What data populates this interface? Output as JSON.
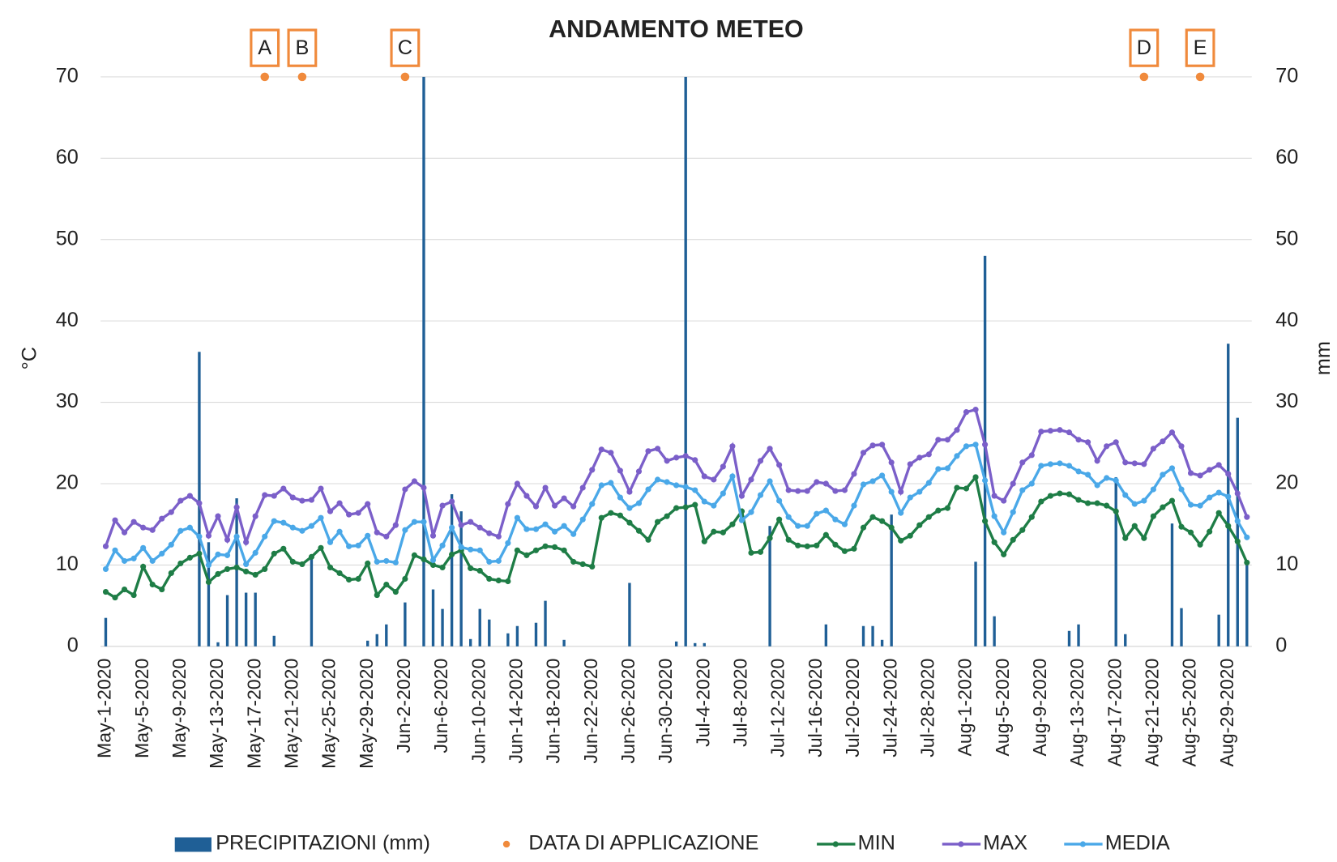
{
  "chart_data": {
    "type": "line",
    "title": "ANDAMENTO METEO",
    "y_label": "°C",
    "y2_label": "mm",
    "ylim": [
      0,
      70
    ],
    "yticks": [
      0,
      10,
      20,
      30,
      40,
      50,
      60,
      70
    ],
    "y2lim": [
      0,
      70
    ],
    "y2ticks": [
      0,
      10,
      20,
      30,
      40,
      50,
      60,
      70
    ],
    "grid": true,
    "legend": "bottom",
    "categories": [
      "May-1-2020",
      null,
      null,
      null,
      "May-5-2020",
      null,
      null,
      null,
      "May-9-2020",
      null,
      null,
      null,
      "May-13-2020",
      null,
      null,
      null,
      "May-17-2020",
      null,
      null,
      null,
      "May-21-2020",
      null,
      null,
      null,
      "May-25-2020",
      null,
      null,
      null,
      "May-29-2020",
      null,
      null,
      null,
      "Jun-2-2020",
      null,
      null,
      null,
      "Jun-6-2020",
      null,
      null,
      null,
      "Jun-10-2020",
      null,
      null,
      null,
      "Jun-14-2020",
      null,
      null,
      null,
      "Jun-18-2020",
      null,
      null,
      null,
      "Jun-22-2020",
      null,
      null,
      null,
      "Jun-26-2020",
      null,
      null,
      null,
      "Jun-30-2020",
      null,
      null,
      null,
      "Jul-4-2020",
      null,
      null,
      null,
      "Jul-8-2020",
      null,
      null,
      null,
      "Jul-12-2020",
      null,
      null,
      null,
      "Jul-16-2020",
      null,
      null,
      null,
      "Jul-20-2020",
      null,
      null,
      null,
      "Jul-24-2020",
      null,
      null,
      null,
      "Jul-28-2020",
      null,
      null,
      null,
      "Aug-1-2020",
      null,
      null,
      null,
      "Aug-5-2020",
      null,
      null,
      null,
      "Aug-9-2020",
      null,
      null,
      null,
      "Aug-13-2020",
      null,
      null,
      null,
      "Aug-17-2020",
      null,
      null,
      null,
      "Aug-21-2020",
      null,
      null,
      null,
      "Aug-25-2020",
      null,
      null,
      null,
      "Aug-29-2020",
      null,
      null
    ],
    "series": [
      {
        "name": "PRECIPITAZIONI (mm)",
        "type": "bar",
        "axis": "y2",
        "color": "#1f5f96",
        "values": [
          3.5,
          0,
          0,
          0,
          0,
          0,
          0,
          0,
          0,
          0,
          36.2,
          12.8,
          0.5,
          6.3,
          18.2,
          6.6,
          6.6,
          0,
          1.3,
          0,
          0,
          0,
          11,
          0,
          0,
          0,
          0,
          0,
          0.7,
          1.5,
          2.7,
          0,
          5.4,
          0,
          70,
          7,
          4.6,
          18.7,
          16.6,
          0.9,
          4.6,
          3.3,
          0,
          1.6,
          2.5,
          0,
          2.9,
          5.6,
          0,
          0.8,
          0,
          0,
          0,
          0,
          0,
          0,
          7.8,
          0,
          0,
          0,
          0,
          0.6,
          70,
          0.4,
          0.4,
          0,
          0,
          0,
          0,
          0,
          0,
          14.8,
          0,
          0,
          0,
          0,
          0,
          2.7,
          0,
          0,
          0,
          2.5,
          2.5,
          0.8,
          16.2,
          0,
          0,
          0,
          0,
          0,
          0,
          0,
          0,
          10.4,
          48,
          3.7,
          0,
          0,
          0,
          0,
          0,
          0,
          0,
          1.9,
          2.7,
          0,
          0,
          0,
          20.8,
          1.5,
          0,
          0,
          0,
          0,
          15.1,
          4.7,
          0,
          0,
          0,
          3.9,
          37.2,
          28.1,
          10.6
        ]
      },
      {
        "name": "DATA DI APPLICAZIONE",
        "type": "scatter",
        "color": "#f08a3c",
        "annotations": [
          "A",
          "B",
          "C",
          "D",
          "E"
        ],
        "values": [
          null,
          null,
          null,
          null,
          null,
          null,
          null,
          null,
          null,
          null,
          null,
          null,
          null,
          null,
          null,
          null,
          null,
          70,
          null,
          null,
          null,
          70,
          null,
          null,
          null,
          null,
          null,
          null,
          null,
          null,
          null,
          null,
          70,
          null,
          null,
          null,
          null,
          null,
          null,
          null,
          null,
          null,
          null,
          null,
          null,
          null,
          null,
          null,
          null,
          null,
          null,
          null,
          null,
          null,
          null,
          null,
          null,
          null,
          null,
          null,
          null,
          null,
          null,
          null,
          null,
          null,
          null,
          null,
          null,
          null,
          null,
          null,
          null,
          null,
          null,
          null,
          null,
          null,
          null,
          null,
          null,
          null,
          null,
          null,
          null,
          null,
          null,
          null,
          null,
          null,
          null,
          null,
          null,
          null,
          null,
          null,
          null,
          null,
          null,
          null,
          null,
          null,
          null,
          null,
          null,
          null,
          null,
          null,
          null,
          null,
          null,
          70,
          null,
          null,
          null,
          null,
          null,
          70,
          null,
          null,
          null,
          null,
          null
        ]
      },
      {
        "name": "MIN",
        "type": "line",
        "color": "#1e7d46",
        "values": [
          6.7,
          6.0,
          7.0,
          6.3,
          9.8,
          7.6,
          7.0,
          9.0,
          10.2,
          10.9,
          11.4,
          7.9,
          8.9,
          9.5,
          9.7,
          9.2,
          8.8,
          9.5,
          11.4,
          12.0,
          10.4,
          10.1,
          11.0,
          12.1,
          9.7,
          9.0,
          8.2,
          8.3,
          10.2,
          6.3,
          7.6,
          6.7,
          8.3,
          11.2,
          10.7,
          10.0,
          9.7,
          11.3,
          11.8,
          9.6,
          9.3,
          8.3,
          8.1,
          8.0,
          11.8,
          11.2,
          11.8,
          12.3,
          12.2,
          11.8,
          10.4,
          10.1,
          9.8,
          15.8,
          16.4,
          16.1,
          15.2,
          14.2,
          13.1,
          15.3,
          16.0,
          17.0,
          17.1,
          17.4,
          12.9,
          14.1,
          14.0,
          15.0,
          16.6,
          11.5,
          11.6,
          13.3,
          15.6,
          13.1,
          12.4,
          12.3,
          12.4,
          13.7,
          12.5,
          11.7,
          12.0,
          14.6,
          15.9,
          15.4,
          14.6,
          13.0,
          13.6,
          14.9,
          15.9,
          16.7,
          17.0,
          19.5,
          19.4,
          20.8,
          15.4,
          12.8,
          11.3,
          13.1,
          14.3,
          15.9,
          17.8,
          18.5,
          18.8,
          18.7,
          18.0,
          17.6,
          17.6,
          17.3,
          16.6,
          13.3,
          14.8,
          13.3,
          16.0,
          17.1,
          17.9,
          14.7,
          14.0,
          12.5,
          14.1,
          16.4,
          14.8,
          12.9,
          10.3
        ]
      },
      {
        "name": "MAX",
        "type": "line",
        "color": "#7b5fc9",
        "values": [
          12.3,
          15.5,
          14.0,
          15.3,
          14.6,
          14.3,
          15.7,
          16.5,
          17.9,
          18.5,
          17.6,
          13.6,
          16.0,
          13.1,
          17.1,
          12.8,
          16.0,
          18.6,
          18.5,
          19.4,
          18.3,
          17.9,
          18.0,
          19.4,
          16.6,
          17.6,
          16.2,
          16.4,
          17.5,
          14.0,
          13.5,
          14.9,
          19.3,
          20.3,
          19.5,
          13.6,
          17.3,
          17.8,
          14.9,
          15.3,
          14.6,
          13.9,
          13.5,
          17.5,
          20.0,
          18.5,
          17.2,
          19.5,
          17.3,
          18.2,
          17.2,
          19.5,
          21.7,
          24.2,
          23.8,
          21.6,
          19.0,
          21.5,
          24.0,
          24.3,
          22.8,
          23.2,
          23.4,
          22.9,
          20.9,
          20.5,
          22.1,
          24.6,
          18.5,
          20.5,
          22.8,
          24.3,
          22.3,
          19.2,
          19.1,
          19.1,
          20.2,
          20.0,
          19.1,
          19.2,
          21.2,
          23.8,
          24.7,
          24.8,
          22.6,
          19.0,
          22.4,
          23.2,
          23.6,
          25.4,
          25.4,
          26.6,
          28.8,
          29.1,
          24.8,
          18.5,
          17.9,
          20.0,
          22.6,
          23.5,
          26.4,
          26.5,
          26.6,
          26.3,
          25.4,
          25.1,
          22.8,
          24.6,
          25.1,
          22.6,
          22.5,
          22.4,
          24.3,
          25.2,
          26.3,
          24.6,
          21.3,
          21.0,
          21.7,
          22.3,
          21.2,
          18.8,
          15.9
        ]
      },
      {
        "name": "MEDIA",
        "type": "line",
        "color": "#4aa8e8",
        "values": [
          9.5,
          11.8,
          10.5,
          10.8,
          12.1,
          10.5,
          11.4,
          12.5,
          14.2,
          14.6,
          13.5,
          10.0,
          11.3,
          11.2,
          13.5,
          10.1,
          11.5,
          13.5,
          15.4,
          15.2,
          14.6,
          14.2,
          14.8,
          15.8,
          12.8,
          14.1,
          12.3,
          12.4,
          13.6,
          10.4,
          10.5,
          10.3,
          14.3,
          15.3,
          15.3,
          10.6,
          12.4,
          14.6,
          12.2,
          11.9,
          11.8,
          10.4,
          10.5,
          12.7,
          15.8,
          14.4,
          14.4,
          15.0,
          14.1,
          14.8,
          13.8,
          15.6,
          17.5,
          19.8,
          20.1,
          18.3,
          17.0,
          17.6,
          19.3,
          20.5,
          20.2,
          19.8,
          19.6,
          19.2,
          17.8,
          17.3,
          18.8,
          20.9,
          15.5,
          16.5,
          18.6,
          20.3,
          17.9,
          15.9,
          14.8,
          14.8,
          16.3,
          16.7,
          15.6,
          15.0,
          17.3,
          19.9,
          20.3,
          21.0,
          19.0,
          16.4,
          18.3,
          19.0,
          20.1,
          21.8,
          21.9,
          23.4,
          24.6,
          24.8,
          20.4,
          16.0,
          14.0,
          16.5,
          19.2,
          20.0,
          22.2,
          22.4,
          22.5,
          22.2,
          21.5,
          21.1,
          19.8,
          20.7,
          20.4,
          18.6,
          17.5,
          17.9,
          19.3,
          21.1,
          21.9,
          19.3,
          17.4,
          17.3,
          18.3,
          18.9,
          18.4,
          15.4,
          13.4
        ]
      }
    ]
  }
}
